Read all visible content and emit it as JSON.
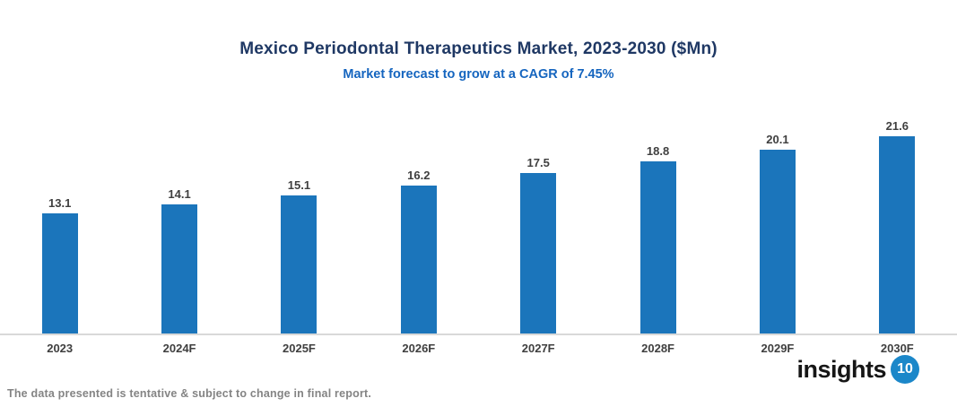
{
  "header": {
    "title": "Mexico Periodontal Therapeutics Market, 2023-2030 ($Mn)",
    "subtitle": "Market forecast to grow at a CAGR of 7.45%"
  },
  "chart_data": {
    "type": "bar",
    "title": "Mexico Periodontal Therapeutics Market, 2023-2030 ($Mn)",
    "subtitle": "Market forecast to grow at a CAGR of 7.45%",
    "categories": [
      "2023",
      "2024F",
      "2025F",
      "2026F",
      "2027F",
      "2028F",
      "2029F",
      "2030F"
    ],
    "values": [
      13.1,
      14.1,
      15.1,
      16.2,
      17.5,
      18.8,
      20.1,
      21.6
    ],
    "xlabel": "",
    "ylabel": "",
    "ylim": [
      0,
      24
    ],
    "grid": false,
    "legend": false,
    "bar_color": "#1b75bb",
    "value_labels_shown": true
  },
  "footer": {
    "note": "The data presented is tentative & subject to change in final report."
  },
  "logo": {
    "text": "insights",
    "badge": "10"
  },
  "colors": {
    "title": "#1f3864",
    "subtitle": "#1565bf",
    "bar": "#1b75bb",
    "value_label": "#3f3f3f",
    "axis_line": "#d9d9d9",
    "footer_note": "#848484",
    "logo_badge": "#1b87c9"
  }
}
